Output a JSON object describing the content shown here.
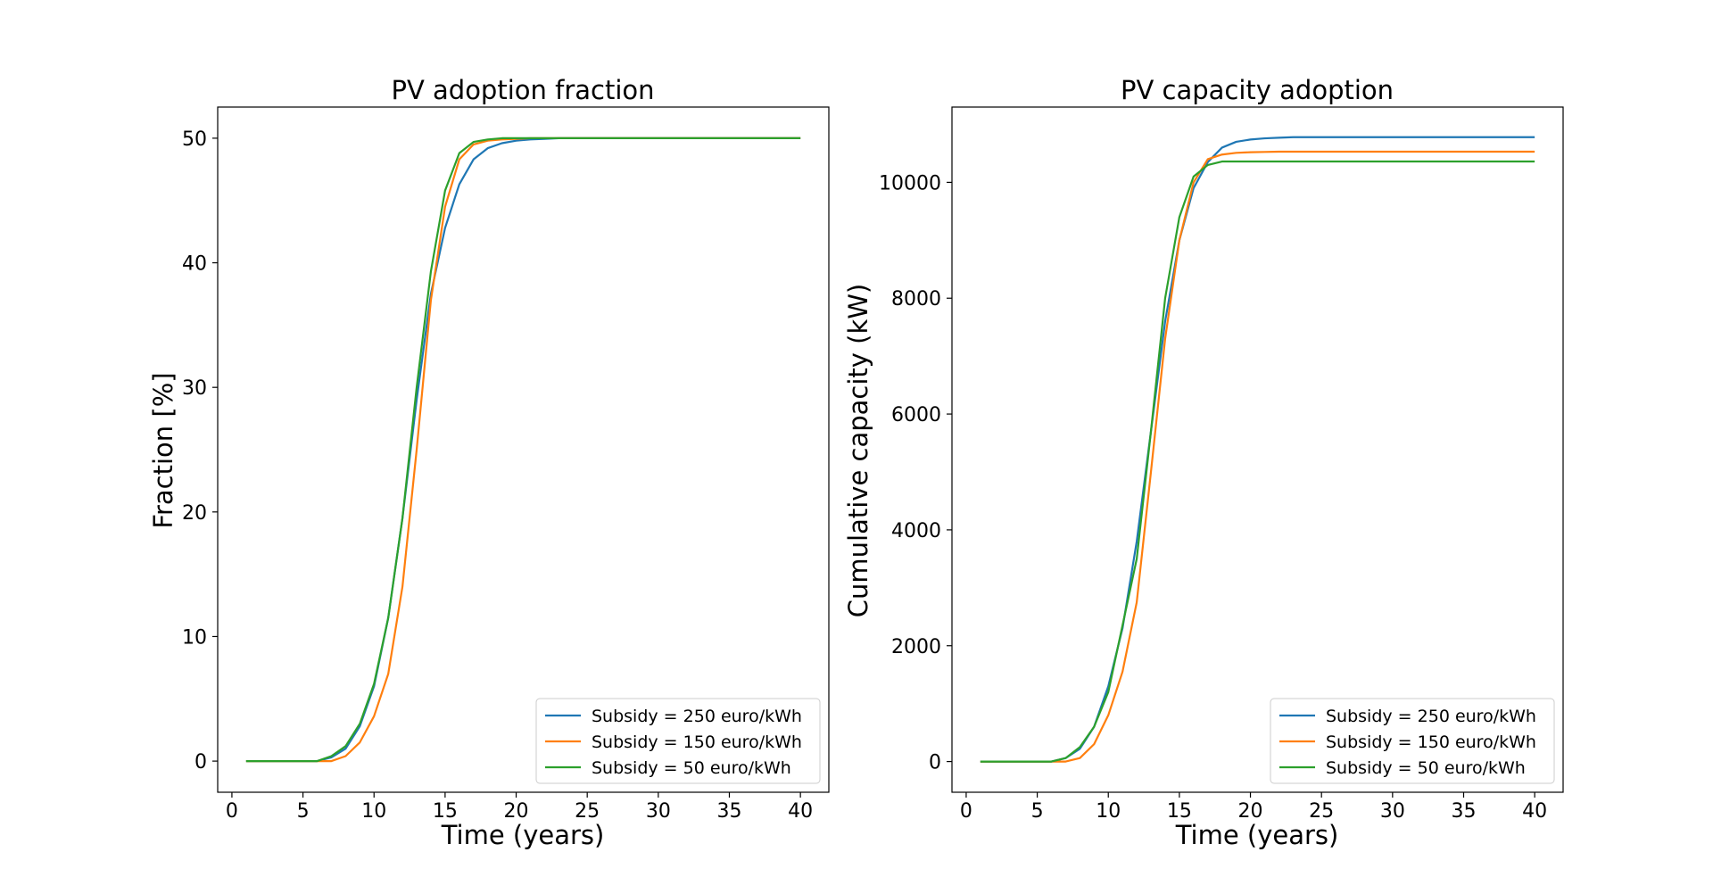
{
  "figure": {
    "charts": [
      "PV adoption fraction",
      "PV capacity adoption"
    ]
  },
  "chart_data": [
    {
      "type": "line",
      "title": "PV adoption fraction",
      "xlabel": "Time (years)",
      "ylabel": "Fraction [%]",
      "xlim": [
        -1,
        42
      ],
      "ylim": [
        -2.5,
        52.5
      ],
      "xticks": [
        0,
        5,
        10,
        15,
        20,
        25,
        30,
        35,
        40
      ],
      "yticks": [
        0,
        10,
        20,
        30,
        40,
        50
      ],
      "legend_position": "bottom-right",
      "x": [
        1,
        2,
        3,
        4,
        5,
        6,
        7,
        8,
        9,
        10,
        11,
        12,
        13,
        14,
        15,
        16,
        17,
        18,
        19,
        20,
        21,
        22,
        23,
        24,
        25,
        26,
        27,
        28,
        29,
        30,
        31,
        32,
        33,
        34,
        35,
        36,
        37,
        38,
        39,
        40
      ],
      "series": [
        {
          "name": "Subsidy = 250 euro/kWh",
          "color": "#1f77b4",
          "values": [
            0,
            0,
            0,
            0,
            0,
            0,
            0.3,
            1.0,
            2.8,
            6.0,
            11.5,
            19.5,
            29.0,
            37.5,
            42.8,
            46.3,
            48.3,
            49.2,
            49.6,
            49.8,
            49.9,
            49.95,
            50,
            50,
            50,
            50,
            50,
            50,
            50,
            50,
            50,
            50,
            50,
            50,
            50,
            50,
            50,
            50,
            50,
            50
          ]
        },
        {
          "name": "Subsidy = 150 euro/kWh",
          "color": "#ff7f0e",
          "values": [
            0,
            0,
            0,
            0,
            0,
            0,
            0,
            0.4,
            1.5,
            3.6,
            7.0,
            14.0,
            25.0,
            37.0,
            44.5,
            48.3,
            49.5,
            49.8,
            49.9,
            49.95,
            50,
            50,
            50,
            50,
            50,
            50,
            50,
            50,
            50,
            50,
            50,
            50,
            50,
            50,
            50,
            50,
            50,
            50,
            50,
            50
          ]
        },
        {
          "name": "Subsidy = 50 euro/kWh",
          "color": "#2ca02c",
          "values": [
            0,
            0,
            0,
            0,
            0,
            0,
            0.4,
            1.2,
            3.0,
            6.2,
            11.5,
            19.5,
            30.0,
            39.3,
            45.8,
            48.8,
            49.7,
            49.9,
            50,
            50,
            50,
            50,
            50,
            50,
            50,
            50,
            50,
            50,
            50,
            50,
            50,
            50,
            50,
            50,
            50,
            50,
            50,
            50,
            50,
            50
          ]
        }
      ]
    },
    {
      "type": "line",
      "title": "PV capacity adoption",
      "xlabel": "Time (years)",
      "ylabel": "Cumulative capacity (kW)",
      "xlim": [
        -1,
        42
      ],
      "ylim": [
        -530,
        11300
      ],
      "xticks": [
        0,
        5,
        10,
        15,
        20,
        25,
        30,
        35,
        40
      ],
      "yticks": [
        0,
        2000,
        4000,
        6000,
        8000,
        10000
      ],
      "legend_position": "bottom-right",
      "x": [
        1,
        2,
        3,
        4,
        5,
        6,
        7,
        8,
        9,
        10,
        11,
        12,
        13,
        14,
        15,
        16,
        17,
        18,
        19,
        20,
        21,
        22,
        23,
        24,
        25,
        26,
        27,
        28,
        29,
        30,
        31,
        32,
        33,
        34,
        35,
        36,
        37,
        38,
        39,
        40
      ],
      "series": [
        {
          "name": "Subsidy = 250 euro/kWh",
          "color": "#1f77b4",
          "values": [
            0,
            0,
            0,
            0,
            0,
            0,
            60,
            220,
            600,
            1300,
            2300,
            3800,
            5700,
            7600,
            9000,
            9900,
            10350,
            10600,
            10700,
            10740,
            10760,
            10770,
            10780,
            10780,
            10780,
            10780,
            10780,
            10780,
            10780,
            10780,
            10780,
            10780,
            10780,
            10780,
            10780,
            10780,
            10780,
            10780,
            10780,
            10780
          ]
        },
        {
          "name": "Subsidy = 150 euro/kWh",
          "color": "#ff7f0e",
          "values": [
            0,
            0,
            0,
            0,
            0,
            0,
            0,
            60,
            300,
            800,
            1550,
            2750,
            5000,
            7300,
            9000,
            10000,
            10400,
            10480,
            10510,
            10520,
            10525,
            10530,
            10530,
            10530,
            10530,
            10530,
            10530,
            10530,
            10530,
            10530,
            10530,
            10530,
            10530,
            10530,
            10530,
            10530,
            10530,
            10530,
            10530,
            10530
          ]
        },
        {
          "name": "Subsidy = 50 euro/kWh",
          "color": "#2ca02c",
          "values": [
            0,
            0,
            0,
            0,
            0,
            0,
            60,
            250,
            600,
            1200,
            2350,
            3500,
            5700,
            8000,
            9400,
            10100,
            10300,
            10360,
            10360,
            10360,
            10360,
            10360,
            10360,
            10360,
            10360,
            10360,
            10360,
            10360,
            10360,
            10360,
            10360,
            10360,
            10360,
            10360,
            10360,
            10360,
            10360,
            10360,
            10360,
            10360
          ]
        }
      ]
    }
  ]
}
